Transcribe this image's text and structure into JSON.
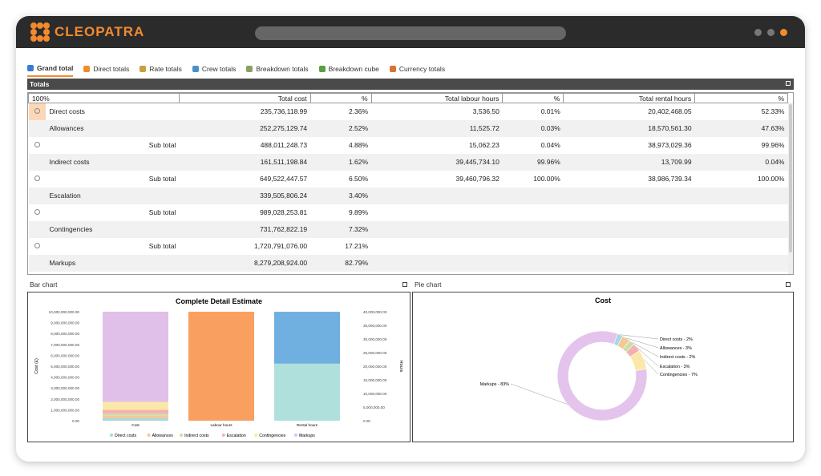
{
  "app": {
    "name": "CLEOPATRA"
  },
  "tabs": [
    {
      "label": "Grand total",
      "icon": "globe-icon",
      "color": "#3a7bd5"
    },
    {
      "label": "Direct totals",
      "icon": "direct-totals-icon",
      "color": "#f28a2e"
    },
    {
      "label": "Rate totals",
      "icon": "rate-totals-icon",
      "color": "#c8a040"
    },
    {
      "label": "Crew totals",
      "icon": "crew-totals-icon",
      "color": "#4a90c8"
    },
    {
      "label": "Breakdown totals",
      "icon": "breakdown-totals-icon",
      "color": "#8aa060"
    },
    {
      "label": "Breakdown cube",
      "icon": "cube-icon",
      "color": "#5aa040"
    },
    {
      "label": "Currency totals",
      "icon": "currency-icon",
      "color": "#e07030"
    }
  ],
  "totals": {
    "title": "Totals",
    "headers": {
      "percent_label": "100%",
      "total_cost": "Total cost",
      "pct1": "%",
      "labour": "Total labour hours",
      "pct2": "%",
      "rental": "Total rental hours",
      "pct3": "%"
    },
    "rows": [
      {
        "radio": true,
        "name": "Direct costs",
        "sub": "",
        "cost": "235,736,118.99",
        "cost_pct": "2.36%",
        "labour": "3,536.50",
        "labour_pct": "0.01%",
        "rental": "20,402,468.05",
        "rental_pct": "52.33%"
      },
      {
        "radio": false,
        "name": "Allowances",
        "sub": "",
        "cost": "252,275,129.74",
        "cost_pct": "2.52%",
        "labour": "11,525.72",
        "labour_pct": "0.03%",
        "rental": "18,570,561.30",
        "rental_pct": "47.63%"
      },
      {
        "radio": true,
        "name": "",
        "sub": "Sub total",
        "cost": "488,011,248.73",
        "cost_pct": "4.88%",
        "labour": "15,062.23",
        "labour_pct": "0.04%",
        "rental": "38,973,029.36",
        "rental_pct": "99.96%"
      },
      {
        "radio": false,
        "name": "Indirect costs",
        "sub": "",
        "cost": "161,511,198.84",
        "cost_pct": "1.62%",
        "labour": "39,445,734.10",
        "labour_pct": "99.96%",
        "rental": "13,709.99",
        "rental_pct": "0.04%"
      },
      {
        "radio": true,
        "name": "",
        "sub": "Sub total",
        "cost": "649,522,447.57",
        "cost_pct": "6.50%",
        "labour": "39,460,796.32",
        "labour_pct": "100.00%",
        "rental": "38,986,739.34",
        "rental_pct": "100.00%"
      },
      {
        "radio": false,
        "name": "Escalation",
        "sub": "",
        "cost": "339,505,806.24",
        "cost_pct": "3.40%",
        "labour": "",
        "labour_pct": "",
        "rental": "",
        "rental_pct": ""
      },
      {
        "radio": true,
        "name": "",
        "sub": "Sub total",
        "cost": "989,028,253.81",
        "cost_pct": "9.89%",
        "labour": "",
        "labour_pct": "",
        "rental": "",
        "rental_pct": ""
      },
      {
        "radio": false,
        "name": "Contingencies",
        "sub": "",
        "cost": "731,762,822.19",
        "cost_pct": "7.32%",
        "labour": "",
        "labour_pct": "",
        "rental": "",
        "rental_pct": ""
      },
      {
        "radio": true,
        "name": "",
        "sub": "Sub total",
        "cost": "1,720,791,076.00",
        "cost_pct": "17.21%",
        "labour": "",
        "labour_pct": "",
        "rental": "",
        "rental_pct": ""
      },
      {
        "radio": false,
        "name": "Markups",
        "sub": "",
        "cost": "8,279,208,924.00",
        "cost_pct": "82.79%",
        "labour": "",
        "labour_pct": "",
        "rental": "",
        "rental_pct": ""
      }
    ]
  },
  "bar_panel": {
    "title": "Bar chart"
  },
  "pie_panel": {
    "title": "Pie chart"
  },
  "chart_data": [
    {
      "type": "bar",
      "title": "Complete Detail Estimate",
      "ylabel": "Cost (£)",
      "y2label": "Hours",
      "categories": [
        "Cost",
        "Labour hours",
        "Rental hours"
      ],
      "yticks": [
        "0.00",
        "1,000,000,000.00",
        "2,000,000,000.00",
        "3,000,000,000.00",
        "4,000,000,000.00",
        "5,000,000,000.00",
        "6,000,000,000.00",
        "7,000,000,000.00",
        "8,000,000,000.00",
        "9,000,000,000.00",
        "10,000,000,000.00"
      ],
      "y2ticks": [
        "0.00",
        "5,000,000.00",
        "10,000,000.00",
        "15,000,000.00",
        "20,000,000.00",
        "25,000,000.00",
        "30,000,000.00",
        "35,000,000.00",
        "40,000,000.00"
      ],
      "ylim": [
        0,
        10000000000
      ],
      "y2lim": [
        0,
        40000000
      ],
      "stack_fractions": [
        {
          "category": "Cost",
          "parts": [
            0.0236,
            0.0252,
            0.0162,
            0.034,
            0.0732,
            0.8279
          ]
        },
        {
          "category": "Labour hours",
          "parts": [
            0.0001,
            0.0003,
            0.9996,
            0,
            0,
            0
          ]
        },
        {
          "category": "Rental hours",
          "parts": [
            0.5233,
            0.4763,
            0.0004,
            0,
            0,
            0
          ]
        }
      ],
      "series": [
        {
          "name": "Direct costs",
          "color": "#a8d8dc"
        },
        {
          "name": "Allowances",
          "color": "#f5c898"
        },
        {
          "name": "Indirect costs",
          "color": "#c8e0a8"
        },
        {
          "name": "Escalation",
          "color": "#f4b0b0"
        },
        {
          "name": "Contingencies",
          "color": "#fbe8a8"
        },
        {
          "name": "Markups",
          "color": "#e0c0e8"
        }
      ],
      "bar_colors": {
        "Labour hours": "#f9a060",
        "Rental hours top": "#70b0e0",
        "Rental hours bottom": "#b0e0dc"
      }
    },
    {
      "type": "pie",
      "title": "Cost",
      "slices": [
        {
          "label": "Direct costs - 2%",
          "value": 2,
          "color": "#a8d8e8"
        },
        {
          "label": "Allowances - 3%",
          "value": 3,
          "color": "#f5c898"
        },
        {
          "label": "Indirect costs - 2%",
          "value": 2,
          "color": "#c8e0a8"
        },
        {
          "label": "Escalation - 3%",
          "value": 3,
          "color": "#f4b0b0"
        },
        {
          "label": "Contingencies - 7%",
          "value": 7,
          "color": "#fbe8a8"
        },
        {
          "label": "Markups - 83%",
          "value": 83,
          "color": "#e4c4ec"
        }
      ]
    }
  ]
}
